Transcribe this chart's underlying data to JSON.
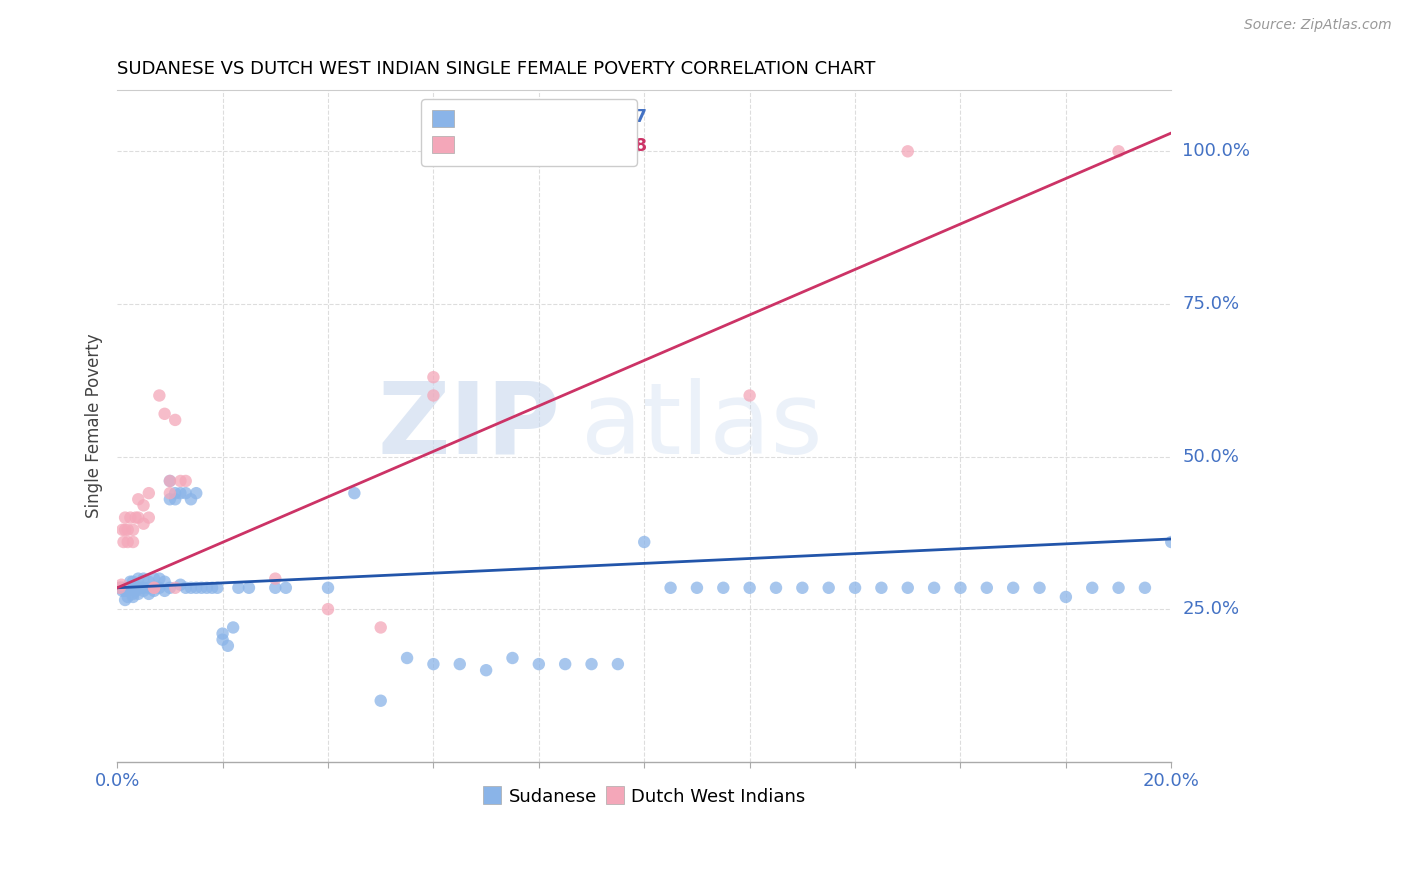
{
  "title": "SUDANESE VS DUTCH WEST INDIAN SINGLE FEMALE POVERTY CORRELATION CHART",
  "source": "Source: ZipAtlas.com",
  "ylabel": "Single Female Poverty",
  "yaxis_labels": [
    "100.0%",
    "75.0%",
    "50.0%",
    "25.0%"
  ],
  "yaxis_values": [
    1.0,
    0.75,
    0.5,
    0.25
  ],
  "xlim": [
    0.0,
    0.2
  ],
  "ylim": [
    0.0,
    1.1
  ],
  "blue_color": "#8ab4e8",
  "pink_color": "#f4a7b9",
  "blue_line_color": "#2255aa",
  "pink_line_color": "#cc3366",
  "sudanese_points": [
    [
      0.0005,
      0.285
    ],
    [
      0.0008,
      0.285
    ],
    [
      0.001,
      0.28
    ],
    [
      0.0012,
      0.285
    ],
    [
      0.0015,
      0.265
    ],
    [
      0.0015,
      0.28
    ],
    [
      0.0018,
      0.28
    ],
    [
      0.002,
      0.27
    ],
    [
      0.002,
      0.285
    ],
    [
      0.0022,
      0.285
    ],
    [
      0.0025,
      0.285
    ],
    [
      0.0025,
      0.295
    ],
    [
      0.003,
      0.285
    ],
    [
      0.003,
      0.27
    ],
    [
      0.003,
      0.295
    ],
    [
      0.003,
      0.275
    ],
    [
      0.0035,
      0.285
    ],
    [
      0.0035,
      0.28
    ],
    [
      0.004,
      0.285
    ],
    [
      0.004,
      0.3
    ],
    [
      0.004,
      0.275
    ],
    [
      0.0045,
      0.285
    ],
    [
      0.005,
      0.28
    ],
    [
      0.005,
      0.285
    ],
    [
      0.005,
      0.3
    ],
    [
      0.006,
      0.285
    ],
    [
      0.006,
      0.295
    ],
    [
      0.006,
      0.275
    ],
    [
      0.007,
      0.285
    ],
    [
      0.007,
      0.3
    ],
    [
      0.007,
      0.28
    ],
    [
      0.008,
      0.3
    ],
    [
      0.008,
      0.285
    ],
    [
      0.009,
      0.295
    ],
    [
      0.009,
      0.28
    ],
    [
      0.01,
      0.285
    ],
    [
      0.01,
      0.43
    ],
    [
      0.01,
      0.46
    ],
    [
      0.011,
      0.44
    ],
    [
      0.011,
      0.43
    ],
    [
      0.012,
      0.44
    ],
    [
      0.012,
      0.29
    ],
    [
      0.013,
      0.285
    ],
    [
      0.013,
      0.44
    ],
    [
      0.014,
      0.43
    ],
    [
      0.014,
      0.285
    ],
    [
      0.015,
      0.44
    ],
    [
      0.015,
      0.285
    ],
    [
      0.016,
      0.285
    ],
    [
      0.017,
      0.285
    ],
    [
      0.018,
      0.285
    ],
    [
      0.019,
      0.285
    ],
    [
      0.02,
      0.21
    ],
    [
      0.02,
      0.2
    ],
    [
      0.021,
      0.19
    ],
    [
      0.022,
      0.22
    ],
    [
      0.023,
      0.285
    ],
    [
      0.025,
      0.285
    ],
    [
      0.03,
      0.285
    ],
    [
      0.032,
      0.285
    ],
    [
      0.04,
      0.285
    ],
    [
      0.045,
      0.44
    ],
    [
      0.05,
      0.1
    ],
    [
      0.055,
      0.17
    ],
    [
      0.06,
      0.16
    ],
    [
      0.065,
      0.16
    ],
    [
      0.07,
      0.15
    ],
    [
      0.075,
      0.17
    ],
    [
      0.08,
      0.16
    ],
    [
      0.085,
      0.16
    ],
    [
      0.09,
      0.16
    ],
    [
      0.095,
      0.16
    ],
    [
      0.1,
      0.36
    ],
    [
      0.105,
      0.285
    ],
    [
      0.11,
      0.285
    ],
    [
      0.115,
      0.285
    ],
    [
      0.12,
      0.285
    ],
    [
      0.125,
      0.285
    ],
    [
      0.13,
      0.285
    ],
    [
      0.135,
      0.285
    ],
    [
      0.14,
      0.285
    ],
    [
      0.145,
      0.285
    ],
    [
      0.15,
      0.285
    ],
    [
      0.155,
      0.285
    ],
    [
      0.16,
      0.285
    ],
    [
      0.165,
      0.285
    ],
    [
      0.17,
      0.285
    ],
    [
      0.175,
      0.285
    ],
    [
      0.18,
      0.27
    ],
    [
      0.185,
      0.285
    ],
    [
      0.19,
      0.285
    ],
    [
      0.195,
      0.285
    ],
    [
      0.2,
      0.36
    ]
  ],
  "dutch_points": [
    [
      0.0005,
      0.285
    ],
    [
      0.0008,
      0.29
    ],
    [
      0.001,
      0.38
    ],
    [
      0.0012,
      0.36
    ],
    [
      0.0015,
      0.38
    ],
    [
      0.0015,
      0.4
    ],
    [
      0.002,
      0.38
    ],
    [
      0.002,
      0.36
    ],
    [
      0.0025,
      0.4
    ],
    [
      0.003,
      0.38
    ],
    [
      0.003,
      0.36
    ],
    [
      0.0035,
      0.4
    ],
    [
      0.004,
      0.43
    ],
    [
      0.004,
      0.4
    ],
    [
      0.005,
      0.42
    ],
    [
      0.005,
      0.39
    ],
    [
      0.006,
      0.44
    ],
    [
      0.006,
      0.4
    ],
    [
      0.007,
      0.285
    ],
    [
      0.007,
      0.285
    ],
    [
      0.008,
      0.6
    ],
    [
      0.009,
      0.57
    ],
    [
      0.01,
      0.44
    ],
    [
      0.01,
      0.46
    ],
    [
      0.011,
      0.285
    ],
    [
      0.011,
      0.56
    ],
    [
      0.012,
      0.46
    ],
    [
      0.013,
      0.46
    ],
    [
      0.03,
      0.3
    ],
    [
      0.04,
      0.25
    ],
    [
      0.05,
      0.22
    ],
    [
      0.06,
      0.6
    ],
    [
      0.06,
      0.63
    ],
    [
      0.12,
      0.6
    ],
    [
      0.15,
      1.0
    ],
    [
      0.19,
      1.0
    ]
  ],
  "blue_line": {
    "x0": 0.0,
    "y0": 0.285,
    "x1": 0.2,
    "y1": 0.365
  },
  "pink_line": {
    "x0": 0.0,
    "y0": 0.285,
    "x1": 0.2,
    "y1": 1.03
  },
  "gridline_color": "#dddddd",
  "spine_color": "#cccccc"
}
